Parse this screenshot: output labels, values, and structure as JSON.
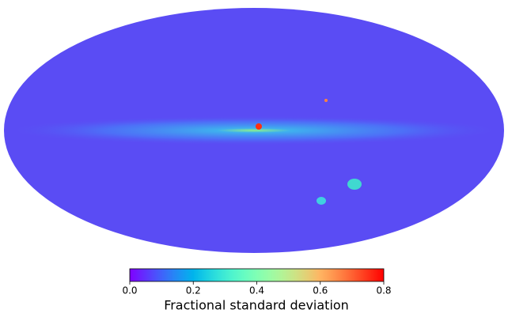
{
  "chart_data": {
    "type": "colorbar-map",
    "colormap": "rainbow",
    "clim": [
      0,
      0.8
    ],
    "ticks": [
      {
        "value": 0,
        "label": "0.0"
      },
      0.2,
      0.4,
      0.6,
      0.8
    ],
    "label": "Fractional standard deviation"
  }
}
